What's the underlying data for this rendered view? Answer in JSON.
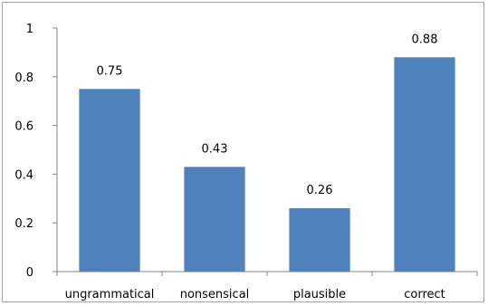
{
  "chart_data": {
    "type": "bar",
    "categories": [
      "ungrammatical",
      "nonsensical",
      "plausible",
      "correct"
    ],
    "values": [
      0.75,
      0.43,
      0.26,
      0.88
    ],
    "value_labels": [
      "0.75",
      "0.43",
      "0.26",
      "0.88"
    ],
    "yticks": [
      "0",
      "0.2",
      "0.4",
      "0.6",
      "0.8",
      "1"
    ],
    "title": "",
    "xlabel": "",
    "ylabel": "",
    "ylim": [
      0,
      1
    ],
    "grid": false,
    "legend": "none",
    "bar_color": "#4f81bd",
    "axis_color": "#868686"
  }
}
